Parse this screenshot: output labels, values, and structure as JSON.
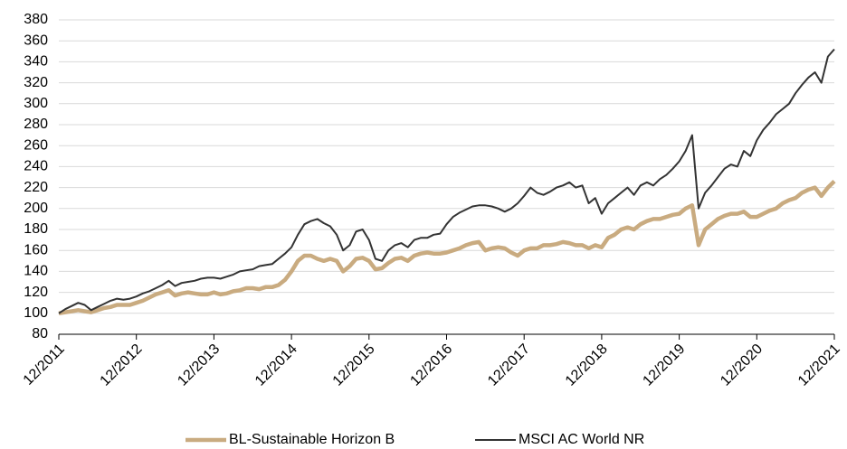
{
  "chart_data": {
    "type": "line",
    "categories": [
      "12/2011",
      null,
      null,
      null,
      null,
      null,
      null,
      null,
      null,
      null,
      null,
      null,
      "12/2012",
      null,
      null,
      null,
      null,
      null,
      null,
      null,
      null,
      null,
      null,
      null,
      "12/2013",
      null,
      null,
      null,
      null,
      null,
      null,
      null,
      null,
      null,
      null,
      null,
      "12/2014",
      null,
      null,
      null,
      null,
      null,
      null,
      null,
      null,
      null,
      null,
      null,
      "12/2015",
      null,
      null,
      null,
      null,
      null,
      null,
      null,
      null,
      null,
      null,
      null,
      "12/2016",
      null,
      null,
      null,
      null,
      null,
      null,
      null,
      null,
      null,
      null,
      null,
      "12/2017",
      null,
      null,
      null,
      null,
      null,
      null,
      null,
      null,
      null,
      null,
      null,
      "12/2018",
      null,
      null,
      null,
      null,
      null,
      null,
      null,
      null,
      null,
      null,
      null,
      "12/2019",
      null,
      null,
      null,
      null,
      null,
      null,
      null,
      null,
      null,
      null,
      null,
      "12/2020",
      null,
      null,
      null,
      null,
      null,
      null,
      null,
      null,
      null,
      null,
      null,
      "12/2021"
    ],
    "series": [
      {
        "name": "BL-Sustainable Horizon B",
        "color": "#c9ab80",
        "values": [
          100,
          101,
          102,
          103,
          102,
          101,
          103,
          105,
          106,
          108,
          108,
          108,
          110,
          112,
          115,
          118,
          120,
          122,
          117,
          119,
          120,
          119,
          118,
          118,
          120,
          118,
          119,
          121,
          122,
          124,
          124,
          123,
          125,
          125,
          127,
          132,
          140,
          150,
          155,
          155,
          152,
          150,
          152,
          150,
          140,
          145,
          152,
          153,
          150,
          142,
          143,
          148,
          152,
          153,
          150,
          155,
          157,
          158,
          157,
          157,
          158,
          160,
          162,
          165,
          167,
          168,
          160,
          162,
          163,
          162,
          158,
          155,
          160,
          162,
          162,
          165,
          165,
          166,
          168,
          167,
          165,
          165,
          162,
          165,
          163,
          172,
          175,
          180,
          182,
          180,
          185,
          188,
          190,
          190,
          192,
          194,
          195,
          200,
          203,
          165,
          180,
          185,
          190,
          193,
          195,
          195,
          197,
          192,
          192,
          195,
          198,
          200,
          205,
          208,
          210,
          215,
          218,
          220,
          212,
          220,
          226
        ]
      },
      {
        "name": "MSCI AC World NR",
        "color": "#333333",
        "values": [
          100,
          104,
          107,
          110,
          108,
          103,
          106,
          109,
          112,
          114,
          113,
          114,
          116,
          119,
          121,
          124,
          127,
          131,
          126,
          129,
          130,
          131,
          133,
          134,
          134,
          133,
          135,
          137,
          140,
          141,
          142,
          145,
          146,
          147,
          152,
          157,
          163,
          175,
          185,
          188,
          190,
          186,
          183,
          175,
          160,
          165,
          178,
          180,
          170,
          152,
          150,
          160,
          165,
          167,
          163,
          170,
          172,
          172,
          175,
          176,
          185,
          192,
          196,
          199,
          202,
          203,
          203,
          202,
          200,
          197,
          200,
          205,
          212,
          220,
          215,
          213,
          216,
          220,
          222,
          225,
          220,
          222,
          205,
          210,
          195,
          205,
          210,
          215,
          220,
          213,
          222,
          225,
          222,
          228,
          232,
          238,
          245,
          255,
          270,
          200,
          215,
          222,
          230,
          238,
          242,
          240,
          255,
          250,
          265,
          275,
          282,
          290,
          295,
          300,
          310,
          318,
          325,
          330,
          320,
          345,
          352
        ]
      }
    ],
    "ylim": [
      80,
      380
    ],
    "yticks": [
      80,
      100,
      120,
      140,
      160,
      180,
      200,
      220,
      240,
      260,
      280,
      300,
      320,
      340,
      360,
      380
    ],
    "grid": true,
    "legend": "bottom"
  }
}
